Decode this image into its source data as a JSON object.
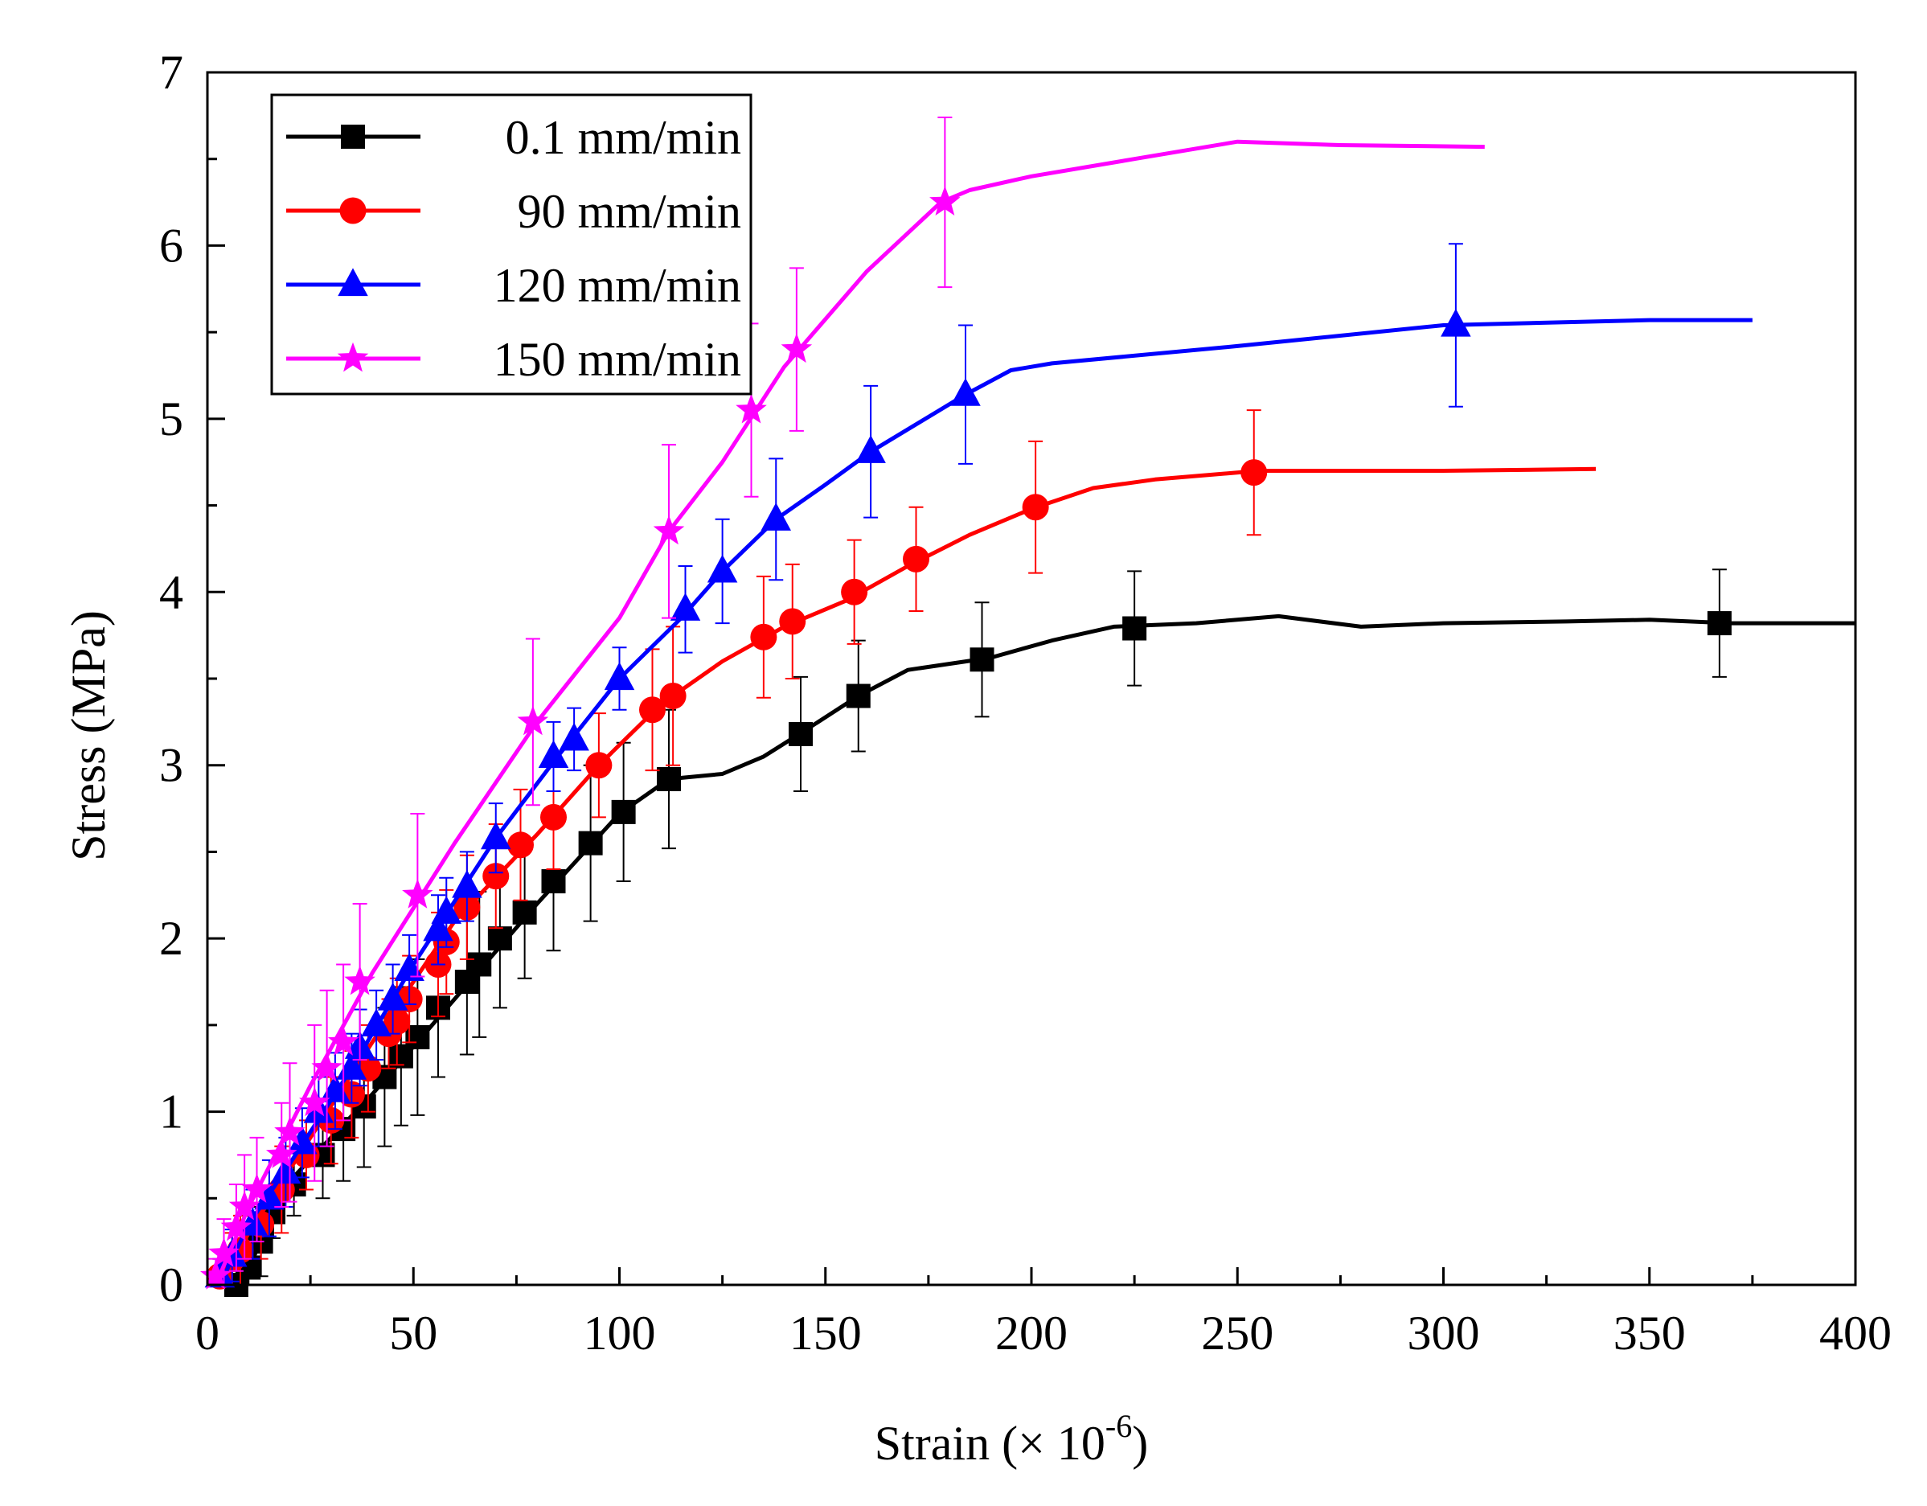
{
  "chart_data": {
    "type": "line",
    "xlabel": "Strain (×  10",
    "xlabel_exp": "-6",
    "xlabel_close": ")",
    "ylabel": "Stress (MPa)",
    "xlim": [
      0,
      400
    ],
    "ylim": [
      0,
      7
    ],
    "x_ticks": [
      0,
      50,
      100,
      150,
      200,
      250,
      300,
      350,
      400
    ],
    "y_ticks": [
      0,
      1,
      2,
      3,
      4,
      5,
      6,
      7
    ],
    "grid": false,
    "legend_position": "top-left",
    "series": [
      {
        "name": "0.1 mm/min",
        "color": "#000000",
        "marker": "square",
        "curve": [
          [
            8,
            0
          ],
          [
            20,
            0.6
          ],
          [
            40,
            1.1
          ],
          [
            60,
            1.65
          ],
          [
            80,
            2.2
          ],
          [
            100,
            2.72
          ],
          [
            112,
            2.92
          ],
          [
            125,
            2.95
          ],
          [
            135,
            3.05
          ],
          [
            145,
            3.2
          ],
          [
            158,
            3.4
          ],
          [
            170,
            3.55
          ],
          [
            190,
            3.62
          ],
          [
            205,
            3.72
          ],
          [
            220,
            3.8
          ],
          [
            240,
            3.82
          ],
          [
            260,
            3.86
          ],
          [
            280,
            3.8
          ],
          [
            300,
            3.82
          ],
          [
            330,
            3.83
          ],
          [
            350,
            3.84
          ],
          [
            370,
            3.82
          ],
          [
            400,
            3.82
          ]
        ],
        "points": [
          [
            7,
            0
          ],
          [
            10,
            0.1
          ],
          [
            13,
            0.25
          ],
          [
            16,
            0.42
          ],
          [
            21,
            0.58
          ],
          [
            28,
            0.75
          ],
          [
            33,
            0.9
          ],
          [
            38,
            1.03
          ],
          [
            43,
            1.2
          ],
          [
            47,
            1.32
          ],
          [
            51,
            1.43
          ],
          [
            56,
            1.6
          ],
          [
            63,
            1.75
          ],
          [
            66,
            1.85
          ],
          [
            71,
            2.0
          ],
          [
            77,
            2.15
          ],
          [
            84,
            2.33
          ],
          [
            93,
            2.55
          ],
          [
            101,
            2.73
          ],
          [
            112,
            2.92
          ],
          [
            144,
            3.18
          ],
          [
            158,
            3.4
          ],
          [
            188,
            3.61
          ],
          [
            225,
            3.79
          ],
          [
            367,
            3.82
          ]
        ],
        "errors": [
          0.08,
          0.3,
          0.2,
          0.15,
          0.18,
          0.25,
          0.3,
          0.35,
          0.4,
          0.4,
          0.45,
          0.4,
          0.42,
          0.42,
          0.4,
          0.38,
          0.4,
          0.45,
          0.4,
          0.4,
          0.33,
          0.32,
          0.33,
          0.33,
          0.31
        ]
      },
      {
        "name": "90 mm/min",
        "color": "#ff0000",
        "marker": "circle",
        "curve": [
          [
            3,
            0
          ],
          [
            10,
            0.3
          ],
          [
            25,
            0.85
          ],
          [
            40,
            1.4
          ],
          [
            60,
            2.1
          ],
          [
            80,
            2.6
          ],
          [
            95,
            3.0
          ],
          [
            110,
            3.35
          ],
          [
            125,
            3.6
          ],
          [
            140,
            3.8
          ],
          [
            155,
            3.95
          ],
          [
            170,
            4.15
          ],
          [
            185,
            4.33
          ],
          [
            200,
            4.48
          ],
          [
            215,
            4.6
          ],
          [
            230,
            4.65
          ],
          [
            255,
            4.7
          ],
          [
            300,
            4.7
          ],
          [
            337,
            4.71
          ]
        ],
        "points": [
          [
            3,
            0.05
          ],
          [
            6,
            0.15
          ],
          [
            8,
            0.2
          ],
          [
            13,
            0.35
          ],
          [
            18,
            0.55
          ],
          [
            24,
            0.75
          ],
          [
            30,
            0.95
          ],
          [
            35,
            1.1
          ],
          [
            39,
            1.25
          ],
          [
            44,
            1.45
          ],
          [
            46,
            1.52
          ],
          [
            49,
            1.65
          ],
          [
            56,
            1.85
          ],
          [
            58,
            1.98
          ],
          [
            63,
            2.18
          ],
          [
            70,
            2.36
          ],
          [
            76,
            2.54
          ],
          [
            84,
            2.7
          ],
          [
            95,
            3.0
          ],
          [
            108,
            3.32
          ],
          [
            113,
            3.4
          ],
          [
            135,
            3.74
          ],
          [
            142,
            3.83
          ],
          [
            157,
            4.0
          ],
          [
            172,
            4.19
          ],
          [
            201,
            4.49
          ],
          [
            254,
            4.69
          ]
        ],
        "errors": [
          0.1,
          0.15,
          0.2,
          0.2,
          0.25,
          0.2,
          0.25,
          0.25,
          0.25,
          0.2,
          0.25,
          0.25,
          0.3,
          0.3,
          0.3,
          0.3,
          0.32,
          0.3,
          0.3,
          0.35,
          0.4,
          0.35,
          0.33,
          0.3,
          0.3,
          0.38,
          0.36
        ]
      },
      {
        "name": "120 mm/min",
        "color": "#0000ff",
        "marker": "triangle",
        "curve": [
          [
            3,
            0
          ],
          [
            10,
            0.35
          ],
          [
            20,
            0.7
          ],
          [
            35,
            1.25
          ],
          [
            50,
            1.85
          ],
          [
            70,
            2.58
          ],
          [
            85,
            3.05
          ],
          [
            100,
            3.5
          ],
          [
            115,
            3.85
          ],
          [
            125,
            4.12
          ],
          [
            138,
            4.42
          ],
          [
            150,
            4.62
          ],
          [
            161,
            4.81
          ],
          [
            184,
            5.14
          ],
          [
            195,
            5.28
          ],
          [
            205,
            5.32
          ],
          [
            250,
            5.42
          ],
          [
            300,
            5.54
          ],
          [
            350,
            5.57
          ],
          [
            375,
            5.57
          ]
        ],
        "points": [
          [
            3,
            0.05
          ],
          [
            6,
            0.17
          ],
          [
            11,
            0.35
          ],
          [
            15,
            0.5
          ],
          [
            19,
            0.65
          ],
          [
            23,
            0.82
          ],
          [
            27,
            1.0
          ],
          [
            31,
            1.12
          ],
          [
            35,
            1.25
          ],
          [
            37,
            1.37
          ],
          [
            41,
            1.5
          ],
          [
            45,
            1.65
          ],
          [
            49,
            1.82
          ],
          [
            56,
            2.05
          ],
          [
            58,
            2.15
          ],
          [
            63,
            2.3
          ],
          [
            70,
            2.58
          ],
          [
            84,
            3.05
          ],
          [
            89,
            3.15
          ],
          [
            100,
            3.5
          ],
          [
            116,
            3.9
          ],
          [
            125,
            4.12
          ],
          [
            138,
            4.42
          ],
          [
            161,
            4.81
          ],
          [
            184,
            5.14
          ],
          [
            303,
            5.54
          ]
        ],
        "errors": [
          0.1,
          0.15,
          0.2,
          0.22,
          0.2,
          0.2,
          0.2,
          0.22,
          0.2,
          0.22,
          0.2,
          0.2,
          0.2,
          0.2,
          0.2,
          0.2,
          0.2,
          0.2,
          0.18,
          0.18,
          0.25,
          0.3,
          0.35,
          0.38,
          0.4,
          0.47
        ]
      },
      {
        "name": "150 mm/min",
        "color": "#ff00ff",
        "marker": "star",
        "curve": [
          [
            2,
            0
          ],
          [
            10,
            0.45
          ],
          [
            25,
            1.15
          ],
          [
            40,
            1.8
          ],
          [
            60,
            2.55
          ],
          [
            80,
            3.25
          ],
          [
            100,
            3.85
          ],
          [
            112,
            4.35
          ],
          [
            125,
            4.75
          ],
          [
            140,
            5.3
          ],
          [
            160,
            5.85
          ],
          [
            178,
            6.25
          ],
          [
            185,
            6.32
          ],
          [
            200,
            6.4
          ],
          [
            225,
            6.5
          ],
          [
            250,
            6.6
          ],
          [
            275,
            6.58
          ],
          [
            310,
            6.57
          ]
        ],
        "points": [
          [
            2,
            0.05
          ],
          [
            4,
            0.18
          ],
          [
            7,
            0.33
          ],
          [
            9,
            0.45
          ],
          [
            12,
            0.55
          ],
          [
            18,
            0.75
          ],
          [
            20,
            0.88
          ],
          [
            26,
            1.05
          ],
          [
            29,
            1.25
          ],
          [
            33,
            1.4
          ],
          [
            37,
            1.75
          ],
          [
            51,
            2.25
          ],
          [
            79,
            3.25
          ],
          [
            112,
            4.35
          ],
          [
            132,
            5.05
          ],
          [
            143,
            5.4
          ],
          [
            179,
            6.25
          ]
        ],
        "errors": [
          0.1,
          0.2,
          0.25,
          0.3,
          0.3,
          0.3,
          0.4,
          0.45,
          0.45,
          0.45,
          0.45,
          0.47,
          0.48,
          0.5,
          0.5,
          0.47,
          0.49
        ]
      }
    ]
  }
}
